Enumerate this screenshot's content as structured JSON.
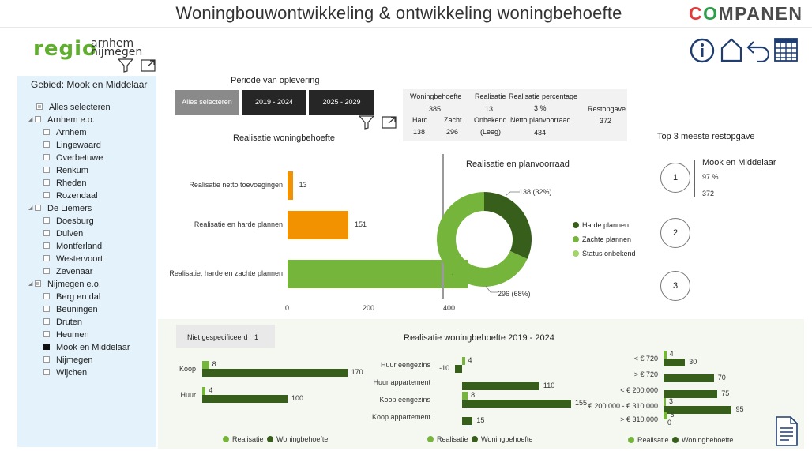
{
  "header": {
    "title": "Woningbouwontwikkeling & ontwikkeling woningbehoefte",
    "brand": "COMPANEN"
  },
  "logo": {
    "regio": "regio",
    "line1": "arnhem",
    "line2": "nijmegen"
  },
  "slicer": {
    "heading": "Gebied: Mook en Middelaar",
    "items": [
      {
        "label": "Alles selecteren",
        "level": 0,
        "state": "partial",
        "caret": false
      },
      {
        "label": "Arnhem e.o.",
        "level": 0,
        "state": "empty",
        "caret": true
      },
      {
        "label": "Arnhem",
        "level": 1,
        "state": "empty",
        "caret": false
      },
      {
        "label": "Lingewaard",
        "level": 1,
        "state": "empty",
        "caret": false
      },
      {
        "label": "Overbetuwe",
        "level": 1,
        "state": "empty",
        "caret": false
      },
      {
        "label": "Renkum",
        "level": 1,
        "state": "empty",
        "caret": false
      },
      {
        "label": "Rheden",
        "level": 1,
        "state": "empty",
        "caret": false
      },
      {
        "label": "Rozendaal",
        "level": 1,
        "state": "empty",
        "caret": false
      },
      {
        "label": "De Liemers",
        "level": 0,
        "state": "empty",
        "caret": true
      },
      {
        "label": "Doesburg",
        "level": 1,
        "state": "empty",
        "caret": false
      },
      {
        "label": "Duiven",
        "level": 1,
        "state": "empty",
        "caret": false
      },
      {
        "label": "Montferland",
        "level": 1,
        "state": "empty",
        "caret": false
      },
      {
        "label": "Westervoort",
        "level": 1,
        "state": "empty",
        "caret": false
      },
      {
        "label": "Zevenaar",
        "level": 1,
        "state": "empty",
        "caret": false
      },
      {
        "label": "Nijmegen e.o.",
        "level": 0,
        "state": "partial",
        "caret": true
      },
      {
        "label": "Berg en dal",
        "level": 1,
        "state": "empty",
        "caret": false
      },
      {
        "label": "Beuningen",
        "level": 1,
        "state": "empty",
        "caret": false
      },
      {
        "label": "Druten",
        "level": 1,
        "state": "empty",
        "caret": false
      },
      {
        "label": "Heumen",
        "level": 1,
        "state": "empty",
        "caret": false
      },
      {
        "label": "Mook en Middelaar",
        "level": 1,
        "state": "checked",
        "caret": false
      },
      {
        "label": "Nijmegen",
        "level": 1,
        "state": "empty",
        "caret": false
      },
      {
        "label": "Wijchen",
        "level": 1,
        "state": "empty",
        "caret": false
      }
    ]
  },
  "nav": {
    "info": "info-icon",
    "home": "home-icon",
    "back": "back-icon",
    "table": "table-icon",
    "report": "report-icon"
  },
  "periode": {
    "title": "Periode van oplevering",
    "buttons": [
      "Alles selecteren",
      "2019 - 2024",
      "2025 - 2029"
    ]
  },
  "kpi": {
    "woningbehoefte_label": "Woningbehoefte",
    "woningbehoefte": "385",
    "realisatie_label": "Realisatie",
    "realisatie": "13",
    "pct_label": "Realisatie percentage",
    "pct": "3 %",
    "restopgave_label": "Restopgave",
    "restopgave": "372",
    "hard_label": "Hard",
    "hard": "138",
    "zacht_label": "Zacht",
    "zacht": "296",
    "onbekend_label": "Onbekend",
    "onbekend": "(Leeg)",
    "netto_label": "Netto planvoorraad",
    "netto": "434"
  },
  "colors": {
    "dark_green": "#375f1b",
    "light_green": "#76b53c",
    "pale_green": "#a5d46a",
    "orange": "#f39200",
    "dark_btn": "#262626",
    "grey_btn": "#8a8a8a"
  },
  "chart_data": [
    {
      "type": "bar",
      "title": "Realisatie woningbehoefte",
      "orientation": "horizontal",
      "categories": [
        "Realisatie netto toevoegingen",
        "Realisatie en harde plannen",
        "Realisatie, harde en zachte plannen"
      ],
      "values": [
        13,
        151,
        447
      ],
      "labels": [
        "13",
        "151",
        "447"
      ],
      "colors": [
        "#f39200",
        "#f39200",
        "#76b53c"
      ],
      "reference_line": 385,
      "xticks": [
        "0",
        "200",
        "400"
      ],
      "xlim": [
        0,
        460
      ]
    },
    {
      "type": "pie",
      "title": "Realisatie en planvoorraad",
      "donut": true,
      "slices": [
        {
          "name": "Harde plannen",
          "value": 138,
          "label": "138 (32%)",
          "color": "#375f1b"
        },
        {
          "name": "Zachte plannen",
          "value": 296,
          "label": "296 (68%)",
          "color": "#76b53c"
        },
        {
          "name": "Status onbekend",
          "value": 0,
          "label": "",
          "color": "#a5d46a"
        }
      ]
    },
    {
      "type": "bar",
      "title": "Realisatie woningbehoefte 2019 - 2024",
      "orientation": "horizontal",
      "group": "type",
      "categories": [
        "Koop",
        "Huur"
      ],
      "series": [
        {
          "name": "Realisatie",
          "values": [
            8,
            4
          ],
          "color": "#76b53c"
        },
        {
          "name": "Woningbehoefte",
          "values": [
            170,
            100
          ],
          "color": "#375f1b"
        }
      ]
    },
    {
      "type": "bar",
      "orientation": "horizontal",
      "group": "segment",
      "categories": [
        "Huur eengezins",
        "Huur appartement",
        "Koop eengezins",
        "Koop appartement"
      ],
      "series": [
        {
          "name": "Realisatie",
          "values": [
            4,
            null,
            8,
            null
          ],
          "color": "#76b53c"
        },
        {
          "name": "Woningbehoefte",
          "values": [
            -10,
            110,
            155,
            15
          ],
          "color": "#375f1b"
        }
      ]
    },
    {
      "type": "bar",
      "orientation": "horizontal",
      "group": "price",
      "categories": [
        "< € 720",
        "> € 720",
        "< € 200.000",
        "€ 200.000 - € 310.000",
        "> € 310.000"
      ],
      "series": [
        {
          "name": "Realisatie",
          "values": [
            4,
            null,
            null,
            3,
            5
          ],
          "color": "#76b53c"
        },
        {
          "name": "Woningbehoefte",
          "values": [
            30,
            70,
            75,
            95,
            0
          ],
          "color": "#375f1b"
        }
      ]
    }
  ],
  "top3": {
    "title": "Top 3 meeste restopgave",
    "ranks": [
      "1",
      "2",
      "3"
    ],
    "first_name": "Mook en Middelaar",
    "first_pct": "97 %",
    "first_value": "372"
  },
  "niet": {
    "label": "Niet gespecificeerd",
    "value": "1"
  },
  "legend": {
    "realisatie": "Realisatie",
    "woningbehoefte": "Woningbehoefte"
  }
}
